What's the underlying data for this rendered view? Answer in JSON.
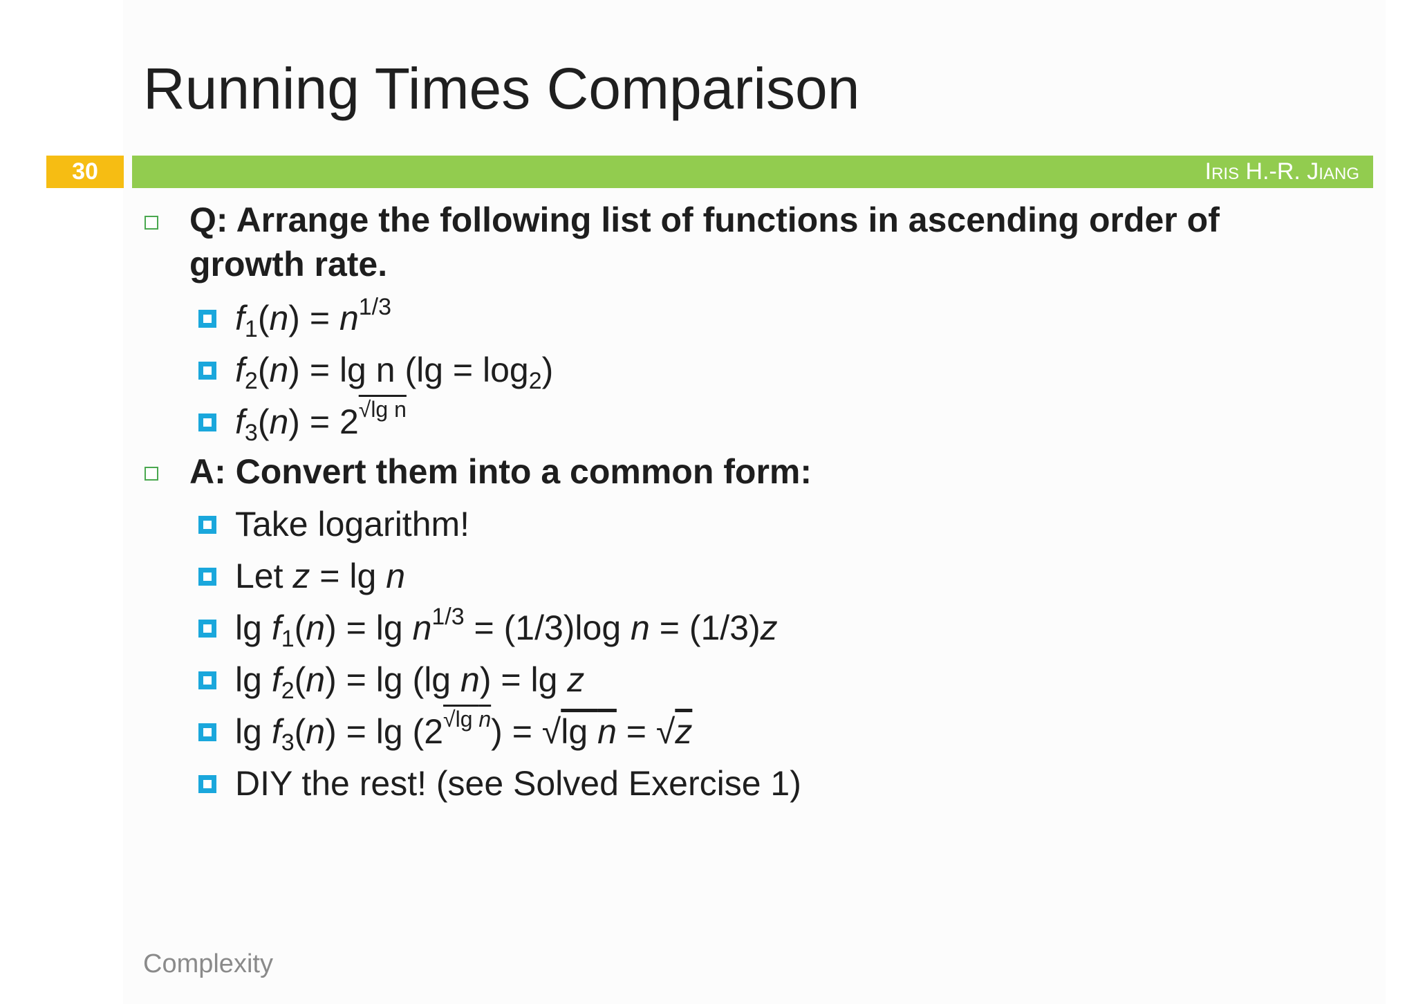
{
  "slide": {
    "title": "Running Times Comparison",
    "page_number": "30",
    "author": "Iris H.-R. Jiang",
    "footer": "Complexity"
  },
  "question": {
    "line1": "Q: Arrange the following list of functions in ascending order of",
    "line2": "growth rate."
  },
  "functions": [
    {
      "f": "f",
      "sub": "1",
      "n": "n",
      "rhs": "n",
      "exp": "1/3"
    },
    {
      "f": "f",
      "sub": "2",
      "n": "n",
      "rhs": "lg n (lg = log",
      "base": "2",
      "close": ")"
    },
    {
      "f": "f",
      "sub": "3",
      "n": "n",
      "rhs": "2",
      "exp": "√lg n"
    }
  ],
  "answer": {
    "heading": "A: Convert them into a common form:",
    "items": [
      "Take logarithm!",
      "Let z = lg n",
      "lg f1(n) = lg n1/3 = (1/3)log n = (1/3)z",
      "lg f2(n) = lg (lg n) = lg z",
      "lg f3(n) = lg (2√lg n) = √lg n = √z",
      "DIY the rest! (see Solved Exercise 1)"
    ]
  },
  "colors": {
    "accent_bar": "#92cc4f",
    "page_badge": "#f6bd13",
    "sub_bullet": "#1aa7dc",
    "main_bullet": "#4aa84f"
  }
}
